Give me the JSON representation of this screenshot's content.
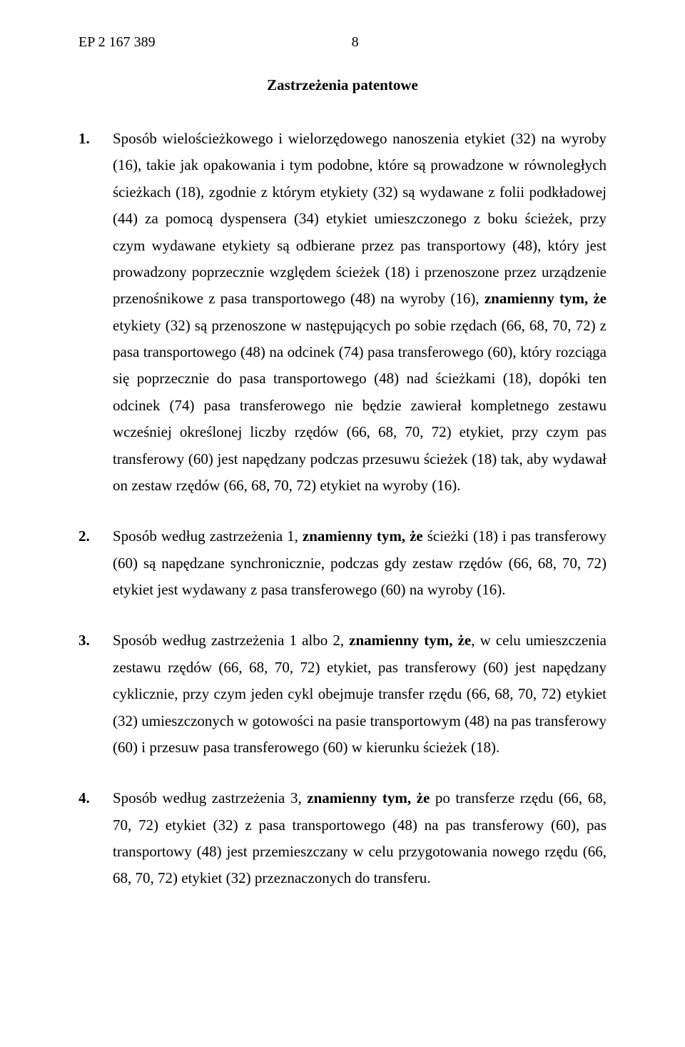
{
  "header": {
    "doc_number": "EP 2 167 389",
    "page_number": "8"
  },
  "section_title": "Zastrzeżenia patentowe",
  "claims": [
    {
      "num": "1.",
      "runs": [
        {
          "t": "Sposób wielościeżkowego i wielorzędowego nanoszenia etykiet (32) na wyroby (16), takie jak opakowania i tym podobne, które są prowadzone w równoległych ścieżkach (18), zgodnie z którym etykiety (32) są wydawane z folii podkładowej (44) za pomocą dyspensera (34) etykiet umieszczonego z boku ścieżek, przy czym wydawane etykiety są odbierane przez pas transportowy (48), który jest prowadzony poprzecznie względem ścieżek (18) i przenoszone przez urządzenie przenośnikowe z pasa transportowego (48) na wyroby (16), "
        },
        {
          "t": "znamienny tym, że",
          "b": true
        },
        {
          "t": " etykiety (32) są przenoszone w następujących po sobie rzędach (66, 68, 70, 72) z pasa transportowego (48) na odcinek (74) pasa transferowego (60), który rozciąga się poprzecznie do pasa transportowego (48) nad ścieżkami (18), dopóki ten odcinek (74) pasa transferowego nie będzie zawierał kompletnego zestawu wcześniej określonej liczby rzędów (66, 68, 70, 72) etykiet, przy czym pas transferowy (60) jest napędzany podczas przesuwu ścieżek (18) tak, aby wydawał on zestaw rzędów (66, 68, 70, 72) etykiet na wyroby (16)."
        }
      ]
    },
    {
      "num": "2.",
      "runs": [
        {
          "t": "Sposób według zastrzeżenia 1, "
        },
        {
          "t": "znamienny tym, że",
          "b": true
        },
        {
          "t": " ścieżki (18) i pas transferowy (60) są napędzane synchronicznie, podczas gdy zestaw rzędów (66, 68, 70, 72) etykiet jest wydawany z pasa transferowego (60) na wyroby (16)."
        }
      ]
    },
    {
      "num": "3.",
      "runs": [
        {
          "t": "Sposób według zastrzeżenia 1 albo 2, "
        },
        {
          "t": "znamienny tym, że",
          "b": true
        },
        {
          "t": ", w celu umieszczenia zestawu rzędów (66, 68, 70, 72) etykiet, pas transferowy (60) jest napędzany cyklicznie, przy czym jeden cykl obejmuje transfer rzędu (66, 68, 70, 72) etykiet (32) umieszczonych w gotowości na pasie transportowym (48) na pas transferowy (60) i przesuw pasa transferowego (60) w kierunku ścieżek (18)."
        }
      ]
    },
    {
      "num": "4.",
      "runs": [
        {
          "t": "Sposób według zastrzeżenia 3, "
        },
        {
          "t": "znamienny tym, że",
          "b": true
        },
        {
          "t": " po transferze rzędu (66, 68, 70, 72) etykiet (32) z pasa transportowego (48) na pas transferowy (60), pas transportowy (48) jest przemieszczany w celu przygotowania nowego rzędu (66, 68, 70, 72) etykiet (32) przeznaczonych do transferu."
        }
      ]
    }
  ]
}
